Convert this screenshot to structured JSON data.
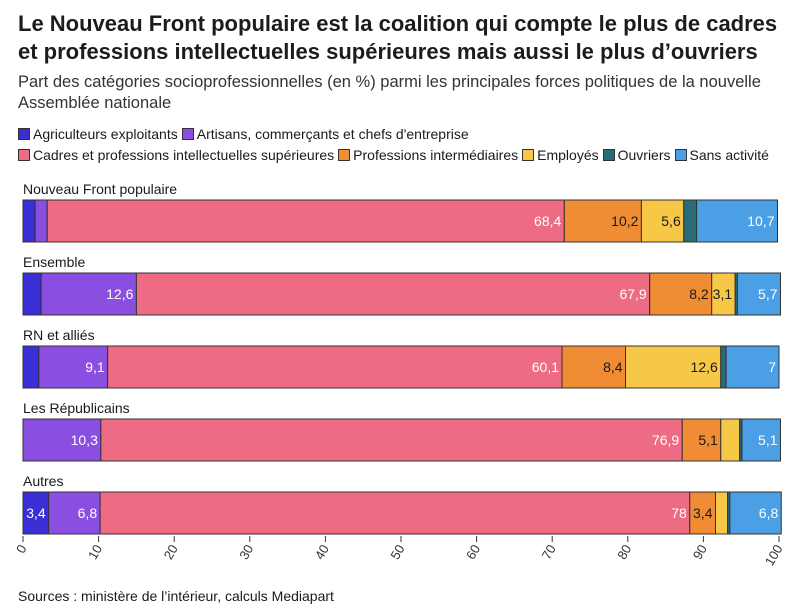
{
  "title": "Le Nouveau Front populaire est la coalition qui compte le plus de cadres et professions intellectuelles supérieures mais aussi le plus d’ouvriers",
  "subtitle": "Part des catégories socioprofessionnelles (en %) parmi les principales forces politiques de la nouvelle Assemblée nationale",
  "source": "Sources : ministère de l’intérieur, calculs Mediapart",
  "chart_data": {
    "type": "bar",
    "orientation": "horizontal",
    "stacked": true,
    "unit": "%",
    "xlim": [
      0,
      100
    ],
    "xticks": [
      0,
      10,
      20,
      30,
      40,
      50,
      60,
      70,
      80,
      90,
      100
    ],
    "grid": false,
    "legend_position": "top",
    "categories": [
      "Nouveau Front populaire",
      "Ensemble",
      "RN et alliés",
      "Les Républicains",
      "Autres"
    ],
    "series": [
      {
        "name": "Agriculteurs exploitants",
        "color": "#3a2fd6",
        "values": [
          1.6,
          2.4,
          2.1,
          0,
          3.4
        ],
        "labels": [
          "",
          "",
          "",
          "",
          "3,4"
        ]
      },
      {
        "name": "Artisans, commerçants et chefs d'entreprise",
        "color": "#8a4fe0",
        "values": [
          1.6,
          12.6,
          9.1,
          10.3,
          6.8
        ],
        "labels": [
          "",
          "12,6",
          "9,1",
          "10,3",
          "6,8"
        ]
      },
      {
        "name": "Cadres et professions intellectuelles supérieures",
        "color": "#ee6b84",
        "values": [
          68.4,
          67.9,
          60.1,
          76.9,
          78
        ],
        "labels": [
          "68,4",
          "67,9",
          "60,1",
          "76,9",
          "78"
        ]
      },
      {
        "name": "Professions intermédiaires",
        "color": "#f08c34",
        "values": [
          10.2,
          8.2,
          8.4,
          5.1,
          3.4
        ],
        "labels": [
          "10,2",
          "8,2",
          "8,4",
          "5,1",
          "3,4"
        ]
      },
      {
        "name": "Employés",
        "color": "#f7c747",
        "values": [
          5.6,
          3.1,
          12.6,
          2.5,
          1.6
        ],
        "labels": [
          "5,6",
          "3,1",
          "12,6",
          "",
          ""
        ]
      },
      {
        "name": "Ouvriers",
        "color": "#2a6b78",
        "values": [
          1.7,
          0.3,
          0.7,
          0.3,
          0.3
        ],
        "labels": [
          "",
          "",
          "",
          "",
          ""
        ]
      },
      {
        "name": "Sans activité",
        "color": "#4b9fe4",
        "values": [
          10.7,
          5.7,
          7,
          5.1,
          6.8
        ],
        "labels": [
          "10,7",
          "5,7",
          "7",
          "5,1",
          "6,8"
        ]
      }
    ]
  }
}
